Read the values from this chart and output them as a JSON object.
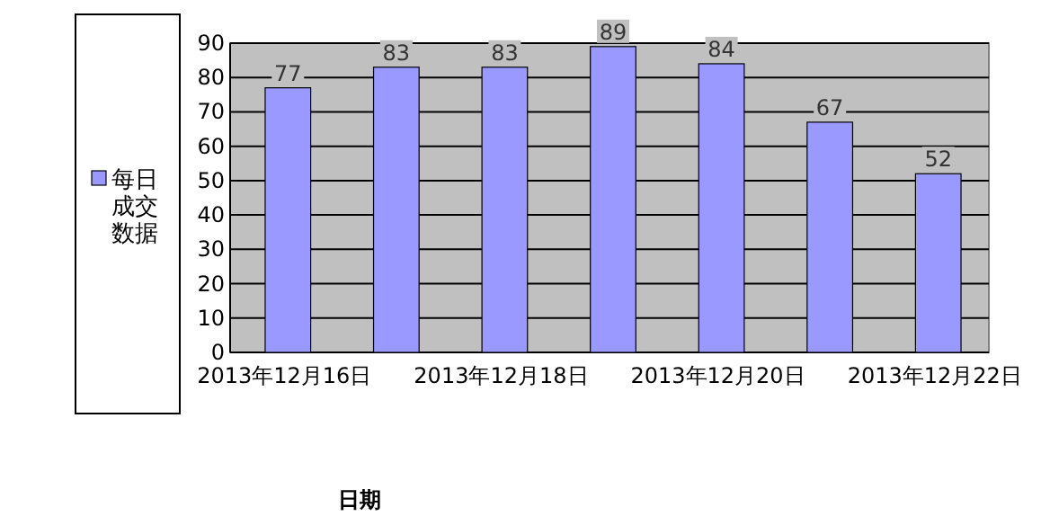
{
  "chart_data": {
    "type": "bar",
    "xlabel": "日期",
    "categories": [
      "2013年12月16日",
      null,
      "2013年12月18日",
      null,
      "2013年12月20日",
      null,
      "2013年12月22日"
    ],
    "series": [
      {
        "name": "每日成交数据",
        "color": "#9999ff",
        "values": [
          77,
          83,
          83,
          89,
          84,
          67,
          52
        ]
      }
    ],
    "ylim": [
      0,
      90
    ],
    "yticks": [
      0,
      10,
      20,
      30,
      40,
      50,
      60,
      70,
      80,
      90
    ],
    "grid": "y",
    "legend": "left",
    "data_labels": true
  }
}
